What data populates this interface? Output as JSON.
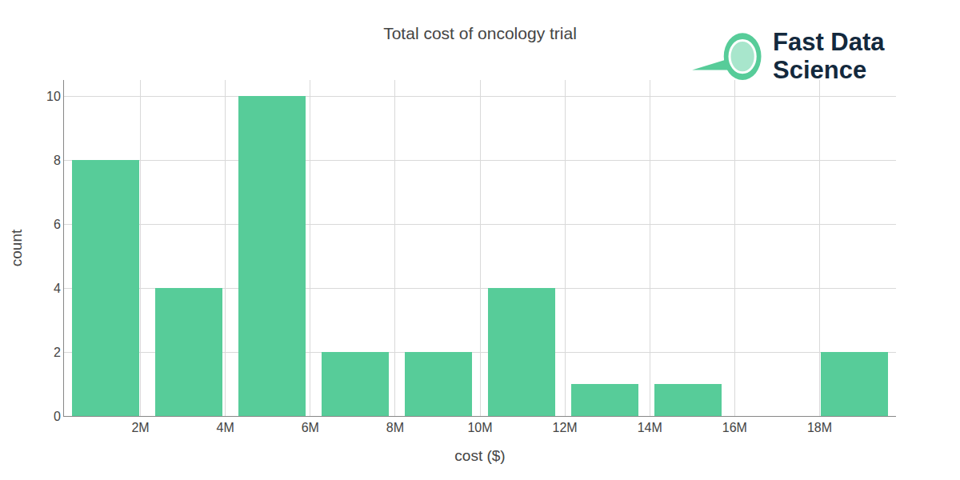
{
  "chart_data": {
    "type": "histogram",
    "title": "Total cost of oncology trial",
    "x_label": "cost ($)",
    "y_label": "count",
    "bins": [
      200000,
      2160000,
      4120000,
      6080000,
      8040000,
      10000000,
      11960000,
      13920000,
      15880000,
      17840000,
      19800000
    ],
    "values": [
      8,
      4,
      10,
      2,
      2,
      4,
      1,
      1,
      0,
      2
    ],
    "color": "#57cc99",
    "xlim": [
      200000,
      19800000
    ],
    "xticks": [
      {
        "value": 2000000,
        "label": "2M"
      },
      {
        "value": 4000000,
        "label": "4M"
      },
      {
        "value": 6000000,
        "label": "6M"
      },
      {
        "value": 8000000,
        "label": "8M"
      },
      {
        "value": 10000000,
        "label": "10M"
      },
      {
        "value": 12000000,
        "label": "12M"
      },
      {
        "value": 14000000,
        "label": "14M"
      },
      {
        "value": 16000000,
        "label": "16M"
      },
      {
        "value": 18000000,
        "label": "18M"
      }
    ],
    "ylim": [
      0,
      10.5
    ],
    "yticks": [
      0,
      2,
      4,
      6,
      8,
      10
    ],
    "grid": true,
    "annotations": [
      "Fast Data",
      "Science"
    ]
  }
}
